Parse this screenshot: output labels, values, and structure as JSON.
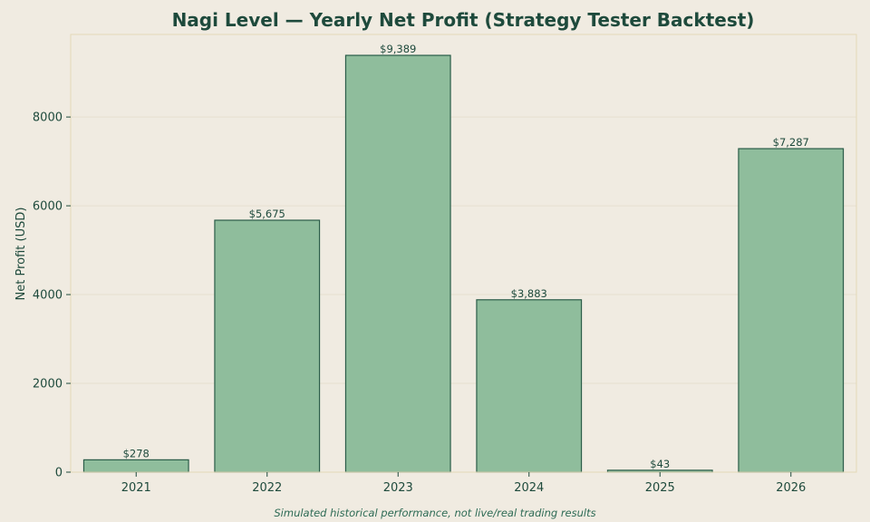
{
  "chart_data": {
    "type": "bar",
    "title": "Nagi Level — Yearly Net Profit (Strategy Tester Backtest)",
    "xlabel": "",
    "ylabel": "Net Profit (USD)",
    "categories": [
      "2021",
      "2022",
      "2023",
      "2024",
      "2025",
      "2026"
    ],
    "values": [
      278,
      5675,
      9389,
      3883,
      43,
      7287
    ],
    "data_labels": [
      "$278",
      "$5,675",
      "$9,389",
      "$3,883",
      "$43",
      "$7,287"
    ],
    "ylim": [
      0,
      9860
    ],
    "yticks": [
      0,
      2000,
      4000,
      6000,
      8000
    ],
    "grid": true,
    "footnote": "Simulated historical performance, not live/real trading results",
    "colors": {
      "bar_fill": "#8fbd9c",
      "bar_edge": "#2a5c48",
      "background": "#f0ebe1",
      "plot_border": "#e3d9b8",
      "grid": "#e6dfcf",
      "text": "#1e4a3c"
    }
  }
}
